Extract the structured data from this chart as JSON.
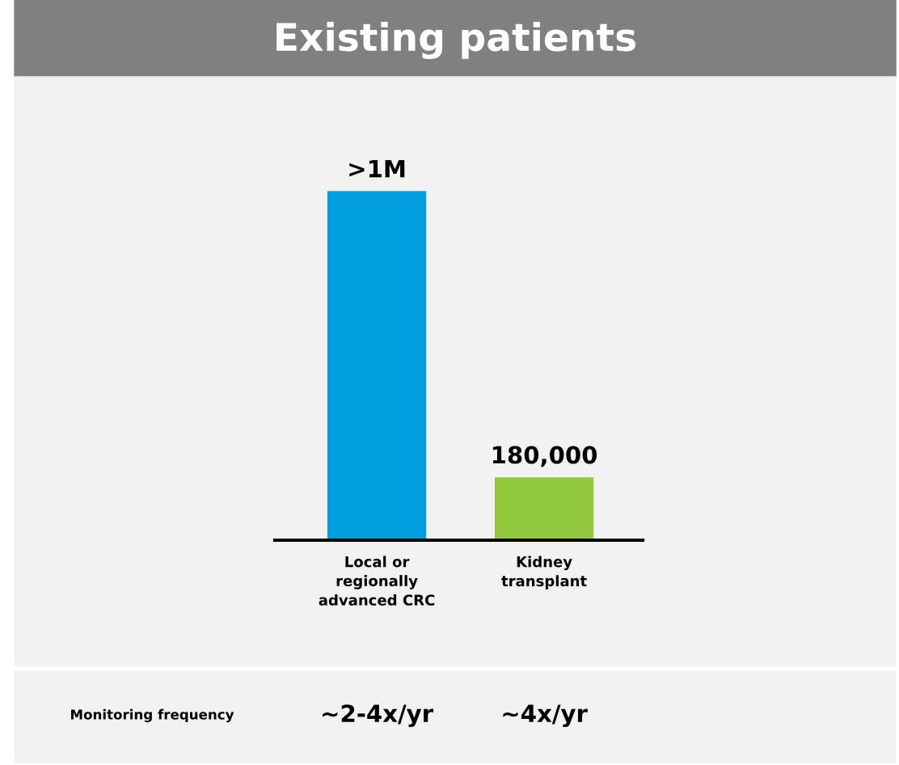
{
  "chart_data": {
    "type": "bar",
    "title": "Existing patients",
    "categories": [
      "Local or\nregionally\nadvanced CRC",
      "Kidney\ntransplant"
    ],
    "values": [
      1000000,
      180000
    ],
    "colors": [
      "#009fe0",
      "#92c83e"
    ],
    "value_labels": [
      ">1M",
      "180,000"
    ],
    "grid": false,
    "legend": false,
    "annotations": [
      "Monitoring frequency",
      "~2-4x/yr",
      "~4x/yr"
    ]
  }
}
